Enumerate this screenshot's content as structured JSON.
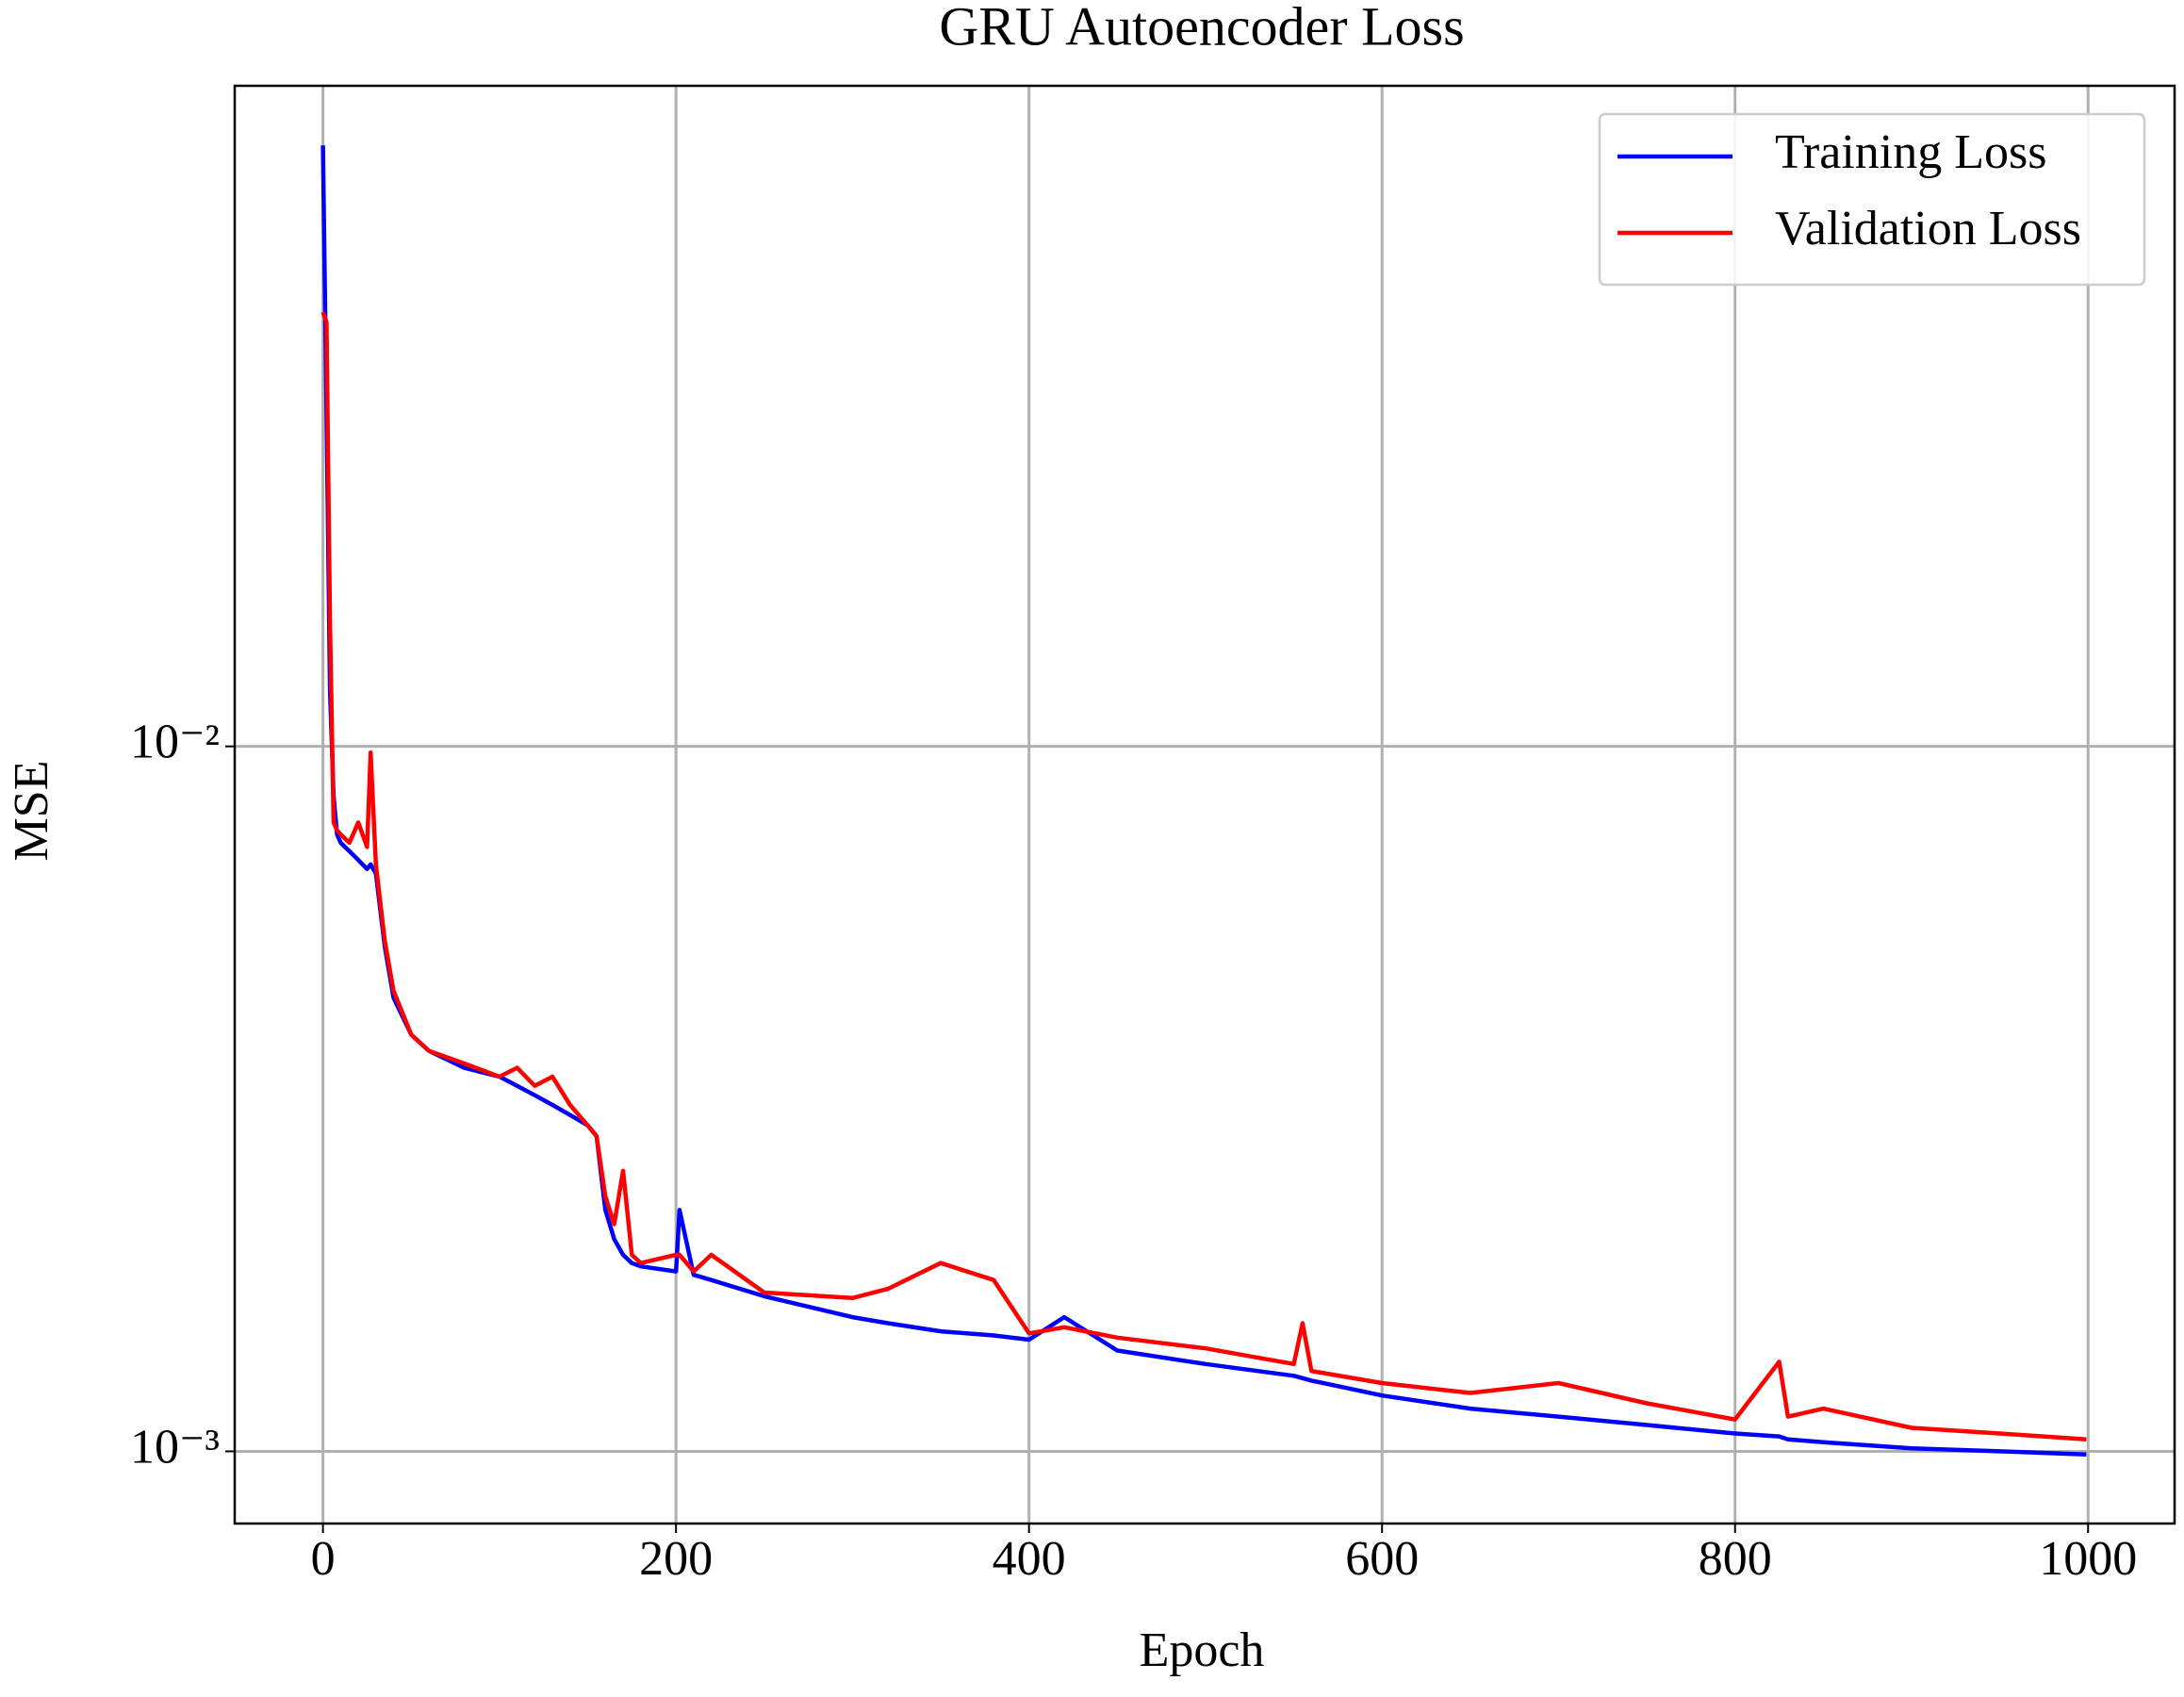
{
  "chart_data": {
    "type": "line",
    "title": "GRU Autoencoder Loss",
    "x_label": "Epoch",
    "y_label": "MSE",
    "x": [
      0,
      2,
      4,
      6,
      8,
      10,
      15,
      20,
      25,
      27,
      30,
      35,
      40,
      50,
      60,
      80,
      100,
      110,
      120,
      130,
      140,
      150,
      155,
      160,
      165,
      170,
      175,
      180,
      200,
      202,
      210,
      220,
      250,
      300,
      320,
      350,
      380,
      400,
      420,
      450,
      500,
      550,
      555,
      560,
      600,
      650,
      700,
      750,
      800,
      825,
      830,
      850,
      900,
      950,
      999
    ],
    "series": [
      {
        "name": "Training Loss",
        "color": "#0000ff",
        "values": [
          0.0712,
          0.03,
          0.012,
          0.0085,
          0.0075,
          0.0073,
          0.0071,
          0.0069,
          0.0067,
          0.0068,
          0.0066,
          0.0052,
          0.0044,
          0.0039,
          0.0037,
          0.0035,
          0.0034,
          0.0033,
          0.0032,
          0.0031,
          0.003,
          0.0029,
          0.0028,
          0.0022,
          0.002,
          0.0019,
          0.00185,
          0.00183,
          0.0018,
          0.0022,
          0.00178,
          0.00175,
          0.00166,
          0.00155,
          0.00152,
          0.00148,
          0.00146,
          0.00144,
          0.00155,
          0.00139,
          0.00133,
          0.00128,
          0.00127,
          0.00126,
          0.0012,
          0.00115,
          0.00112,
          0.00109,
          0.00106,
          0.00105,
          0.00104,
          0.00103,
          0.00101,
          0.001,
          0.00099
        ]
      },
      {
        "name": "Validation Loss",
        "color": "#ff0000",
        "values": [
          0.0413,
          0.04,
          0.015,
          0.0078,
          0.0076,
          0.0075,
          0.0073,
          0.0078,
          0.0072,
          0.0098,
          0.0068,
          0.0053,
          0.0045,
          0.0039,
          0.0037,
          0.00355,
          0.0034,
          0.0035,
          0.0033,
          0.0034,
          0.0031,
          0.0029,
          0.0028,
          0.0023,
          0.0021,
          0.0025,
          0.0019,
          0.00185,
          0.0019,
          0.0019,
          0.0018,
          0.0019,
          0.00168,
          0.00165,
          0.0017,
          0.00185,
          0.00175,
          0.00147,
          0.0015,
          0.00145,
          0.0014,
          0.00133,
          0.00152,
          0.0013,
          0.00125,
          0.00121,
          0.00125,
          0.00117,
          0.00111,
          0.00134,
          0.00112,
          0.00115,
          0.00108,
          0.00106,
          0.00104
        ]
      }
    ],
    "xlim": [
      -50,
      1049
    ],
    "xticks": [
      0,
      200,
      400,
      600,
      800,
      1000
    ],
    "ylim": [
      0.00079,
      0.0865
    ],
    "yticks": [
      {
        "value": 0.001,
        "label": "10⁻³"
      },
      {
        "value": 0.01,
        "label": "10⁻²"
      }
    ],
    "y_scale": "log",
    "grid": true,
    "legend": "upper right"
  }
}
